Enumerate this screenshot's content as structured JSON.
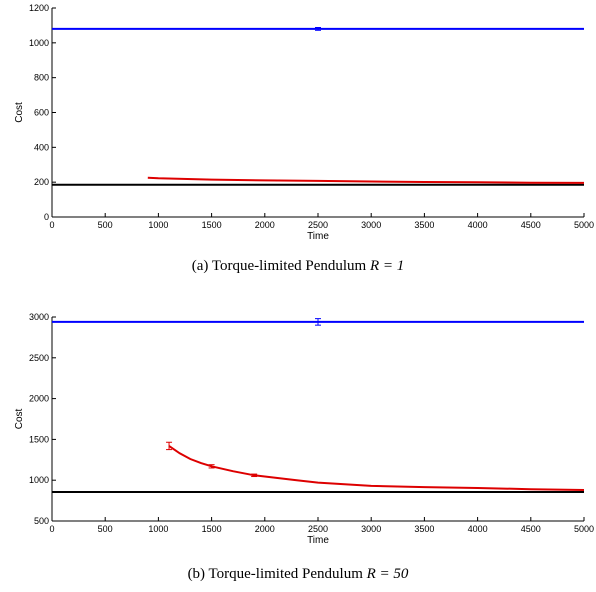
{
  "chart_data": [
    {
      "type": "line",
      "caption_prefix": "(a) Torque-limited Pendulum ",
      "caption_math": "R = 1",
      "xlabel": "Time",
      "ylabel": "Cost",
      "xlim": [
        0,
        5000
      ],
      "ylim": [
        0,
        1200
      ],
      "xticks": [
        0,
        500,
        1000,
        1500,
        2000,
        2500,
        3000,
        3500,
        4000,
        4500,
        5000
      ],
      "yticks": [
        0,
        200,
        400,
        600,
        800,
        1000,
        1200
      ],
      "grid": false,
      "series": [
        {
          "color": "#0000ff",
          "x": [
            0,
            5000
          ],
          "y": [
            1080,
            1080
          ],
          "errorbar": {
            "x": 2500,
            "y": 1080,
            "err": 8
          }
        },
        {
          "color": "#000000",
          "x": [
            0,
            5000
          ],
          "y": [
            185,
            185
          ]
        },
        {
          "color": "#dd0000",
          "x": [
            900,
            1000,
            1500,
            2000,
            2500,
            3000,
            3500,
            4000,
            4500,
            5000
          ],
          "y": [
            225,
            222,
            215,
            210,
            207,
            204,
            201,
            199,
            197,
            196
          ]
        }
      ]
    },
    {
      "type": "line",
      "caption_prefix": "(b) Torque-limited Pendulum ",
      "caption_math": "R = 50",
      "xlabel": "Time",
      "ylabel": "Cost",
      "xlim": [
        0,
        5000
      ],
      "ylim": [
        500,
        3000
      ],
      "xticks": [
        0,
        500,
        1000,
        1500,
        2000,
        2500,
        3000,
        3500,
        4000,
        4500,
        5000
      ],
      "yticks": [
        500,
        1000,
        1500,
        2000,
        2500,
        3000
      ],
      "grid": false,
      "series": [
        {
          "color": "#0000ff",
          "x": [
            0,
            5000
          ],
          "y": [
            2940,
            2940
          ],
          "errorbar": {
            "x": 2500,
            "y": 2940,
            "err": 40
          }
        },
        {
          "color": "#000000",
          "x": [
            0,
            5000
          ],
          "y": [
            855,
            855
          ]
        },
        {
          "color": "#dd0000",
          "x": [
            1100,
            1200,
            1300,
            1400,
            1500,
            1700,
            1900,
            2100,
            2300,
            2500,
            3000,
            3500,
            4000,
            4500,
            5000
          ],
          "y": [
            1420,
            1330,
            1260,
            1210,
            1170,
            1110,
            1060,
            1030,
            1000,
            970,
            930,
            915,
            905,
            890,
            880
          ],
          "errorbars": [
            {
              "x": 1100,
              "y": 1420,
              "err": 45
            },
            {
              "x": 1500,
              "y": 1170,
              "err": 20
            },
            {
              "x": 1900,
              "y": 1060,
              "err": 15
            }
          ]
        }
      ]
    }
  ]
}
